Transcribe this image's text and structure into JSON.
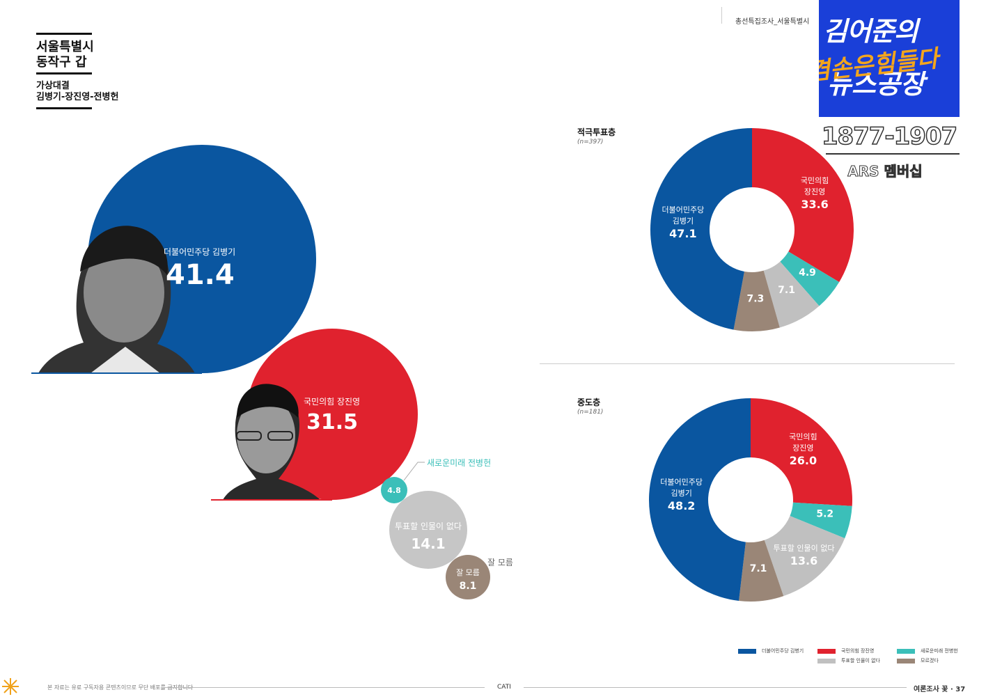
{
  "header": {
    "region_line1": "서울특별시",
    "region_line2": "동작구 갑",
    "matchup_line1": "가상대결",
    "matchup_line2": "김병기-장진영-전병헌",
    "running_head": "총선특집조사_서울특별시"
  },
  "overlay": {
    "channel_name_1": "김어준의",
    "channel_name_2": "겸손은힘들다",
    "channel_name_3": "뉴스공장",
    "phone": "1877-1907",
    "ars": "ARS 멤버십"
  },
  "colors": {
    "democratic": "#0a56a0",
    "ppp": "#e0222e",
    "new_future": "#3bbfb9",
    "none": "#c0c0c0",
    "unknown": "#9a8677"
  },
  "chart_data": [
    {
      "type": "bubble",
      "series": [
        {
          "label": "더불어민주당 김병기",
          "value": "41.4"
        },
        {
          "label": "국민의힘 장진영",
          "value": "31.5"
        },
        {
          "label": "새로운미래 전병헌",
          "value": "4.8"
        },
        {
          "label": "투표할 인물이 없다",
          "value": "14.1"
        },
        {
          "label": "잘 모름",
          "value": "8.1"
        }
      ],
      "outside_label": "잘 모름"
    },
    {
      "type": "donut",
      "title": "적극투표층",
      "n": "(n=397)",
      "slices": [
        {
          "label_line1": "국민의힘",
          "label_line2": "장진영",
          "value": 33.6
        },
        {
          "label_line1": "",
          "label_line2": "",
          "value": 4.9
        },
        {
          "label_line1": "",
          "label_line2": "",
          "value": 7.1
        },
        {
          "label_line1": "",
          "label_line2": "",
          "value": 7.3
        },
        {
          "label_line1": "더불어민주당",
          "label_line2": "김병기",
          "value": 47.1
        }
      ]
    },
    {
      "type": "donut",
      "title": "중도층",
      "n": "(n=181)",
      "slices": [
        {
          "label_line1": "국민의힘",
          "label_line2": "장진영",
          "value": 26.0
        },
        {
          "label_line1": "",
          "label_line2": "",
          "value": 5.2
        },
        {
          "label_line1": "투표할 인물이 없다",
          "label_line2": "",
          "value": 13.6
        },
        {
          "label_line1": "",
          "label_line2": "",
          "value": 7.1
        },
        {
          "label_line1": "더불어민주당",
          "label_line2": "김병기",
          "value": 48.2
        }
      ]
    }
  ],
  "legend": [
    {
      "label": "더불어민주당 김병기",
      "color": "#0a56a0"
    },
    {
      "label": "국민의힘 장진영",
      "color": "#e0222e"
    },
    {
      "label": "새로운미래 전병헌",
      "color": "#3bbfb9"
    },
    {
      "label": "투표할 인물이 없다",
      "color": "#c0c0c0"
    },
    {
      "label": "모르겠다",
      "color": "#9a8677"
    }
  ],
  "footer": {
    "notice": "본 자료는 유료 구독자용 콘텐츠이므로 무단 배포를 금지합니다",
    "method": "CATI",
    "page": "여론조사 꽃 · 37"
  }
}
